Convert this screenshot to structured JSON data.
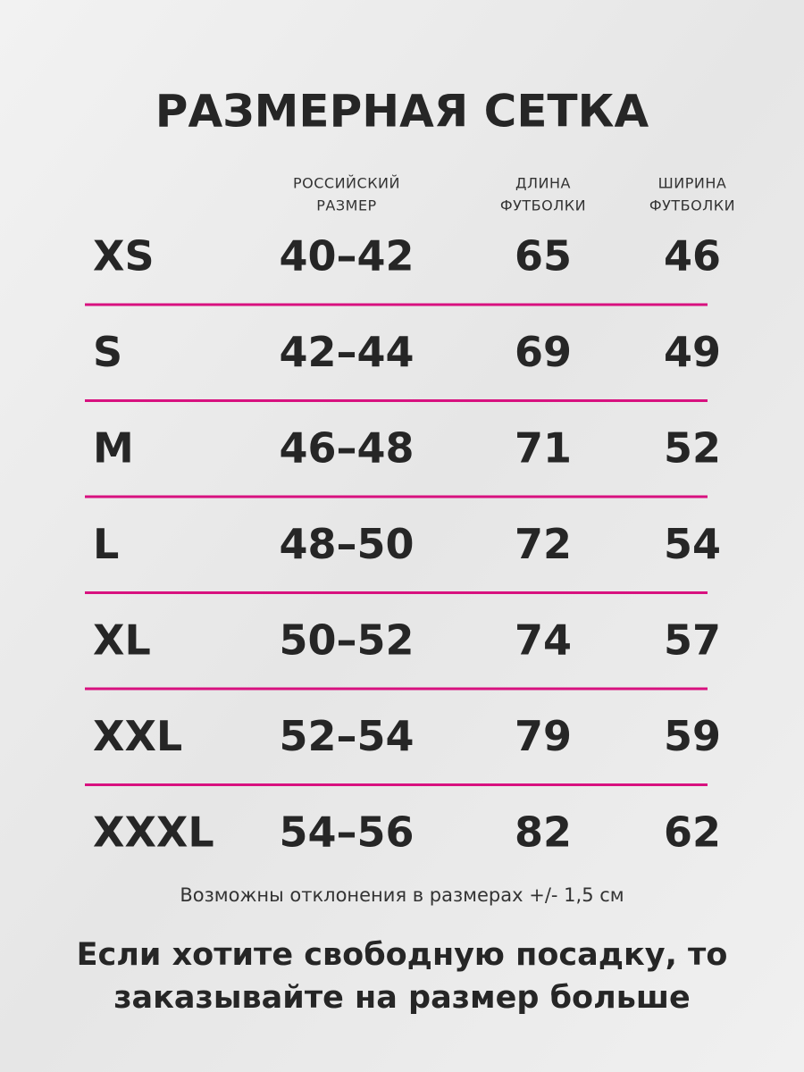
{
  "title": "РАЗМЕРНАЯ СЕТКА",
  "table": {
    "headers": [
      [
        "РОССИЙСКИЙ",
        "РАЗМЕР"
      ],
      [
        "ДЛИНА",
        "ФУТБОЛКИ"
      ],
      [
        "ШИРИНА",
        "ФУТБОЛКИ"
      ]
    ],
    "rows": [
      [
        "XS",
        "40–42",
        65,
        46
      ],
      [
        "S",
        "42–44",
        69,
        49
      ],
      [
        "M",
        "46–48",
        71,
        52
      ],
      [
        "L",
        "48–50",
        72,
        54
      ],
      [
        "XL",
        "50–52",
        74,
        57
      ],
      [
        "XXL",
        "52–54",
        79,
        59
      ],
      [
        "XXXL",
        "54–56",
        82,
        62
      ]
    ]
  },
  "note": "Возможны отклонения в размерах +/- 1,5 см",
  "footer": [
    "Если хотите свободную посадку, то",
    "заказывайте на размер больше"
  ]
}
